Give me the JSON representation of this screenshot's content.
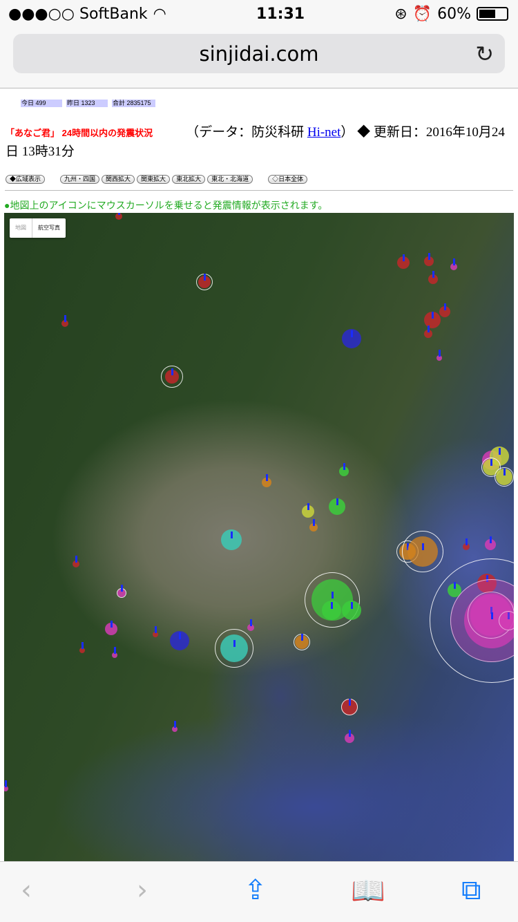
{
  "status": {
    "carrier": "●●●○○ SoftBank",
    "time": "11:31",
    "battery": "60%",
    "battery_level": 0.6
  },
  "browser": {
    "url": "sinjidai.com"
  },
  "counters": {
    "today": "今日 499",
    "yesterday": "昨日 1323",
    "total": "合計 2835175"
  },
  "header": {
    "title": "「あなご君」 24時間以内の発震状況",
    "data_prefix": "（データ：防災科研 ",
    "link": "Hi-net",
    "data_suffix": "）",
    "updated": " ◆ 更新日：2016年10月24日 13時31分"
  },
  "region_buttons": [
    "◆広域表示",
    "九州・四国",
    "関西拡大",
    "関東拡大",
    "東北拡大",
    "東北・北海道",
    "◇日本全体"
  ],
  "note": "●地図上のアイコンにマウスカーソルを乗せると発震情報が表示されます。",
  "map": {
    "type_buttons": [
      "地図",
      "航空写真"
    ],
    "selected_type": "航空写真"
  },
  "marker_colors": {
    "red": "#c0282a",
    "blue": "#2a2acc",
    "green": "#3ccc3c",
    "yellow": "#c8d23c",
    "orange": "#d2821e",
    "cyan": "#3cc8b4",
    "magenta": "#d23cb4",
    "pin": "#1a2cff"
  }
}
